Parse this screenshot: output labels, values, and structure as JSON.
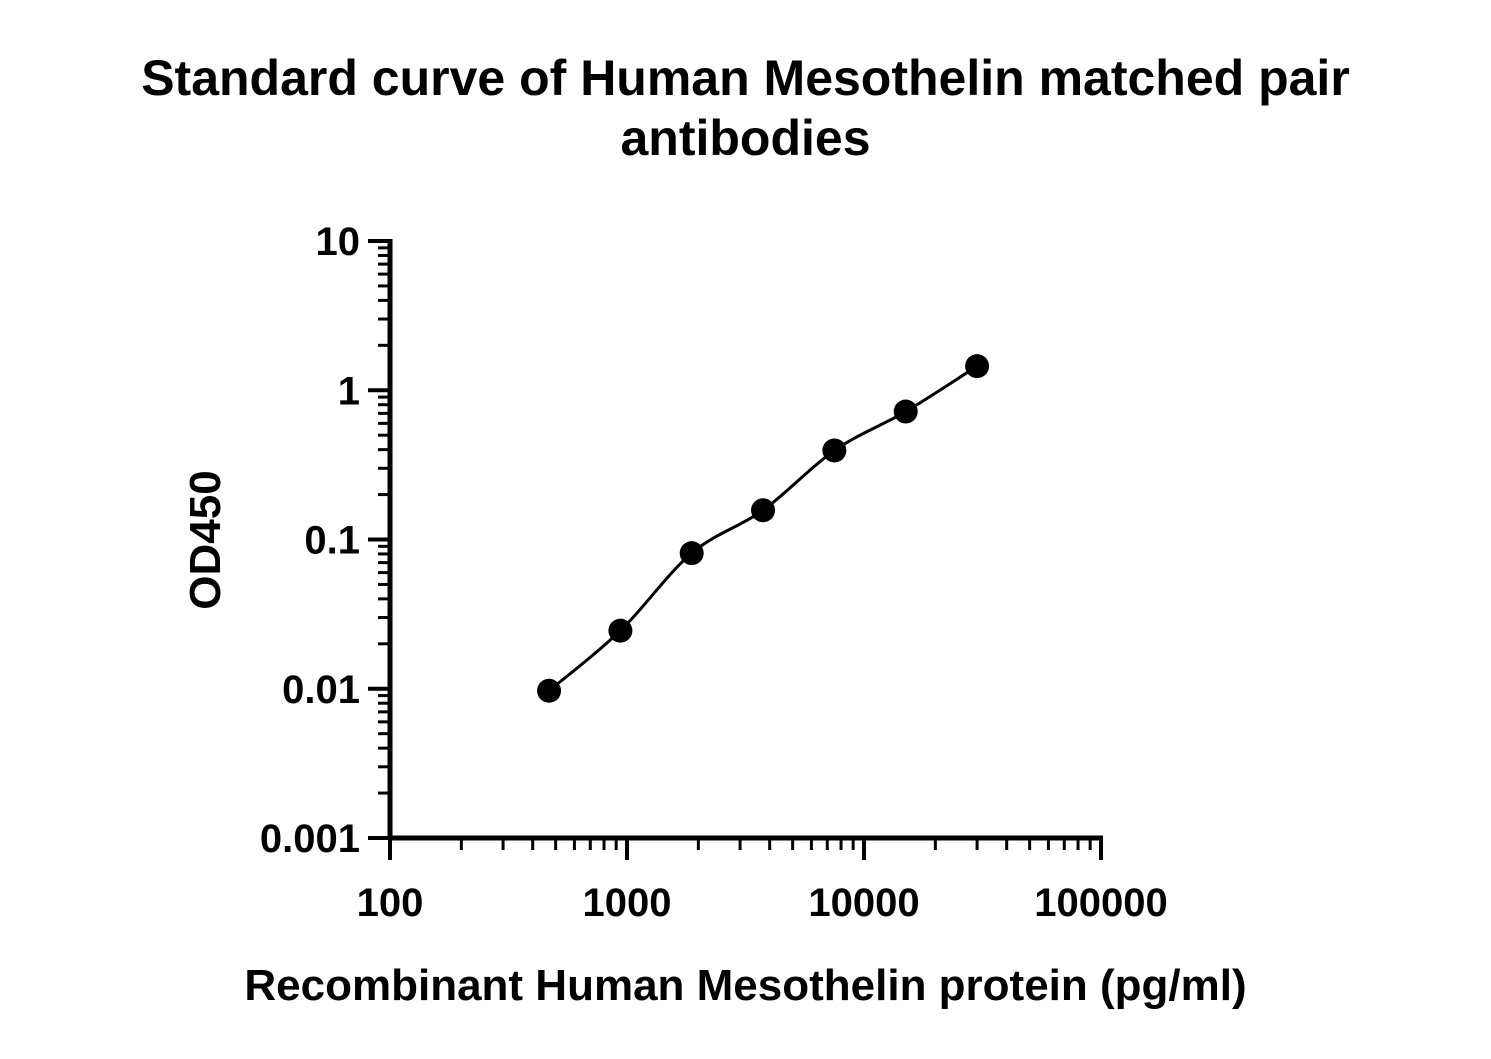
{
  "chart_data": {
    "type": "scatter",
    "title_lines": [
      "Standard curve of Human Mesothelin matched pair",
      "antibodies"
    ],
    "xlabel": "Recombinant Human Mesothelin protein (pg/ml)",
    "ylabel": "OD450",
    "x_scale": "log",
    "y_scale": "log",
    "xlim": [
      100,
      100000
    ],
    "ylim": [
      0.001,
      10
    ],
    "x_tick_labels": [
      "100",
      "1000",
      "10000",
      "100000"
    ],
    "y_tick_labels": [
      "10",
      "1",
      "0.1",
      "0.01",
      "0.001"
    ],
    "grid": false,
    "legend": "none",
    "fit_line": true,
    "series": [
      {
        "x": [
          469,
          938,
          1875,
          3750,
          7500,
          15000,
          30000
        ],
        "y": [
          0.0097,
          0.0245,
          0.081,
          0.157,
          0.395,
          0.72,
          1.45
        ]
      }
    ],
    "colors": {
      "marker": "#000000",
      "axis": "#000000",
      "line": "#000000"
    }
  }
}
